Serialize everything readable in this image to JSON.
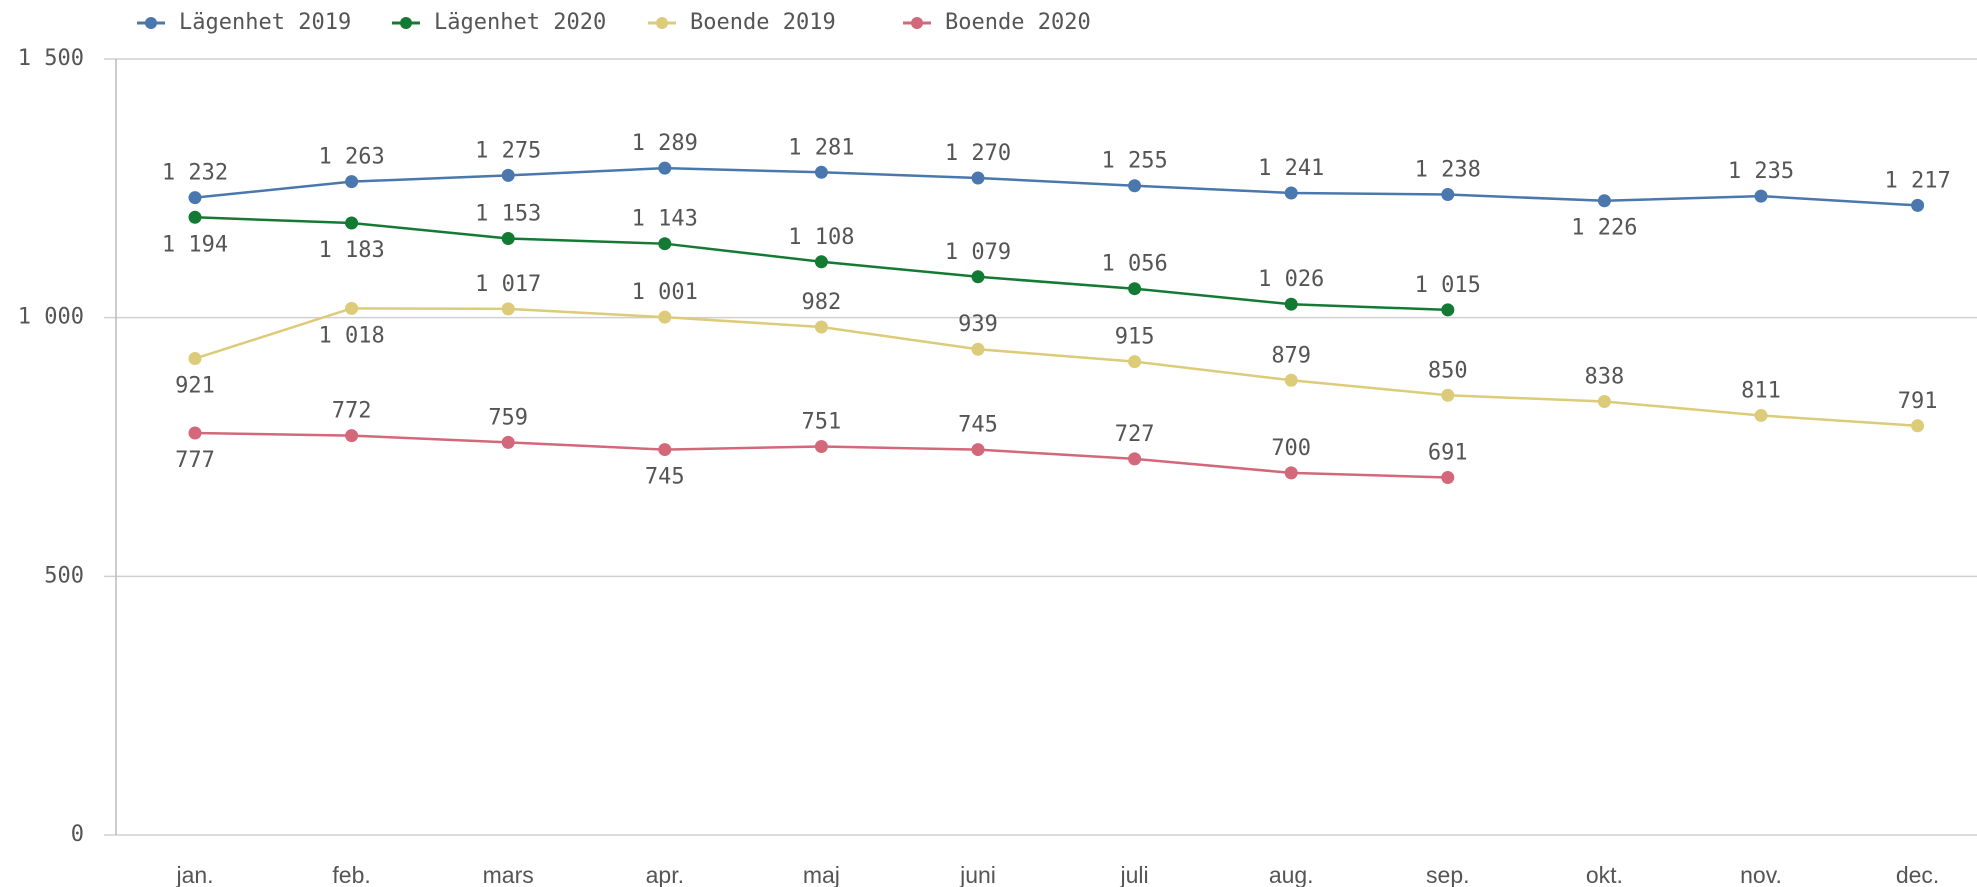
{
  "chart_data": {
    "type": "line",
    "categories": [
      "jan.",
      "feb.",
      "mars",
      "apr.",
      "maj",
      "juni",
      "juli",
      "aug.",
      "sep.",
      "okt.",
      "nov.",
      "dec."
    ],
    "series": [
      {
        "name": "Lägenhet 2019",
        "color": "#4a77ad",
        "values": [
          1232,
          1263,
          1275,
          1289,
          1281,
          1270,
          1255,
          1241,
          1238,
          1226,
          1235,
          1217
        ],
        "value_labels": [
          "1 232",
          "1 263",
          "1 275",
          "1 289",
          "1 281",
          "1 270",
          "1 255",
          "1 241",
          "1 238",
          "1 226",
          "1 235",
          "1 217"
        ]
      },
      {
        "name": "Lägenhet 2020",
        "color": "#137a33",
        "values": [
          1194,
          1183,
          1153,
          1143,
          1108,
          1079,
          1056,
          1026,
          1015,
          null,
          null,
          null
        ],
        "value_labels": [
          "1 194",
          "1 183",
          "1 153",
          "1 143",
          "1 108",
          "1 079",
          "1 056",
          "1 026",
          "1 015",
          null,
          null,
          null
        ]
      },
      {
        "name": "Boende 2019",
        "color": "#dccb78",
        "values": [
          921,
          1018,
          1017,
          1001,
          982,
          939,
          915,
          879,
          850,
          838,
          811,
          791
        ],
        "value_labels": [
          "921",
          "1 018",
          "1 017",
          "1 001",
          "982",
          "939",
          "915",
          "879",
          "850",
          "838",
          "811",
          "791"
        ]
      },
      {
        "name": "Boende 2020",
        "color": "#d2687a",
        "values": [
          777,
          772,
          759,
          745,
          751,
          745,
          727,
          700,
          691,
          null,
          null,
          null
        ],
        "value_labels": [
          "777",
          "772",
          "759",
          "745",
          "751",
          "745",
          "727",
          "700",
          "691",
          null,
          null,
          null
        ]
      }
    ],
    "ylim": [
      0,
      1500
    ],
    "yticks": [
      0,
      500,
      {
        "value": 1000,
        "label": "1 000"
      },
      {
        "value": 1500,
        "label": "1 500"
      }
    ],
    "grid": true,
    "legend": "top"
  }
}
